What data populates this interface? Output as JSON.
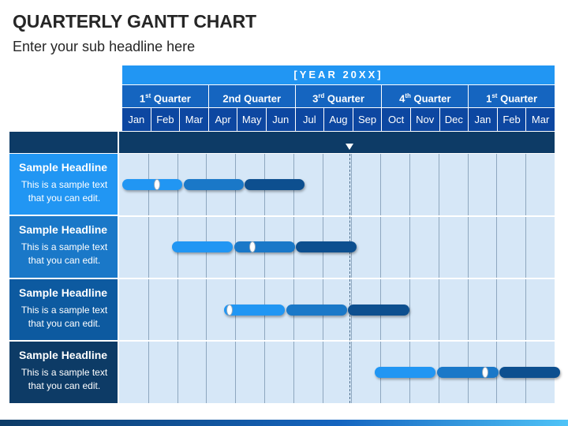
{
  "title": "QUARTERLY GANTT CHART",
  "subtitle": "Enter your sub headline here",
  "year_label": "[YEAR 20XX]",
  "quarters": [
    {
      "num": "1",
      "sup": "st",
      "label": " Quarter"
    },
    {
      "num": "2nd",
      "sup": "",
      "label": " Quarter"
    },
    {
      "num": "3",
      "sup": "rd",
      "label": " Quarter"
    },
    {
      "num": "4",
      "sup": "th",
      "label": " Quarter"
    },
    {
      "num": "1",
      "sup": "st",
      "label": " Quarter"
    }
  ],
  "months": [
    "Jan",
    "Feb",
    "Mar",
    "Apr",
    "May",
    "Jun",
    "Jul",
    "Aug",
    "Sep",
    "Oct",
    "Nov",
    "Dec",
    "Jan",
    "Feb",
    "Mar"
  ],
  "tasks": [
    {
      "headline": "Sample Headline",
      "desc_line1": "This is a sample text",
      "desc_line2": "that you can edit.",
      "label_color": "#2196f3",
      "start": 0.0,
      "end": 6.5,
      "marker": 1.3
    },
    {
      "headline": "Sample Headline",
      "desc_line1": "This is a sample text",
      "desc_line2": "that you can edit.",
      "label_color": "#1a78c8",
      "start": 1.7,
      "end": 8.3,
      "marker": 4.6
    },
    {
      "headline": "Sample Headline",
      "desc_line1": "This is a sample text",
      "desc_line2": "that you can edit.",
      "label_color": "#0d5aa0",
      "start": 3.5,
      "end": 10.1,
      "marker": 3.8
    },
    {
      "headline": "Sample Headline",
      "desc_line1": "This is a sample text",
      "desc_line2": "that you can edit.",
      "label_color": "#0d3b66",
      "start": 8.7,
      "end": 15.3,
      "marker": 12.6
    }
  ],
  "today_month": 8.4,
  "colors": {
    "accent": "#2196f3",
    "quarter": "#1565c0",
    "month": "#0d47a1",
    "dark": "#0d3b66",
    "grid": "#d6e7f7"
  }
}
